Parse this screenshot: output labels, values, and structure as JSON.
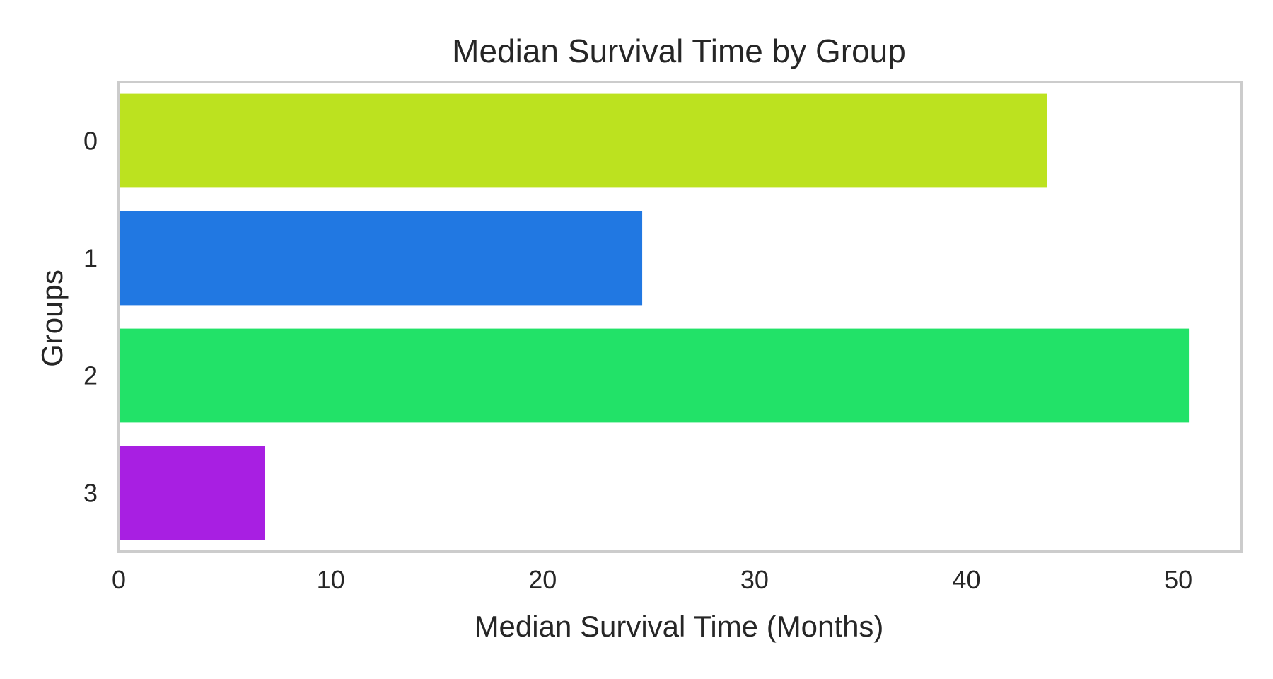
{
  "chart_data": {
    "type": "bar",
    "orientation": "horizontal",
    "title": "Median Survival Time by Group",
    "xlabel": "Median Survival Time (Months)",
    "ylabel": "Groups",
    "categories": [
      "0",
      "1",
      "2",
      "3"
    ],
    "values": [
      43.8,
      24.7,
      50.5,
      6.9
    ],
    "colors": [
      "#bce21f",
      "#2178e2",
      "#22e268",
      "#a81fe2"
    ],
    "xlim": [
      0,
      53
    ],
    "xticks": [
      0,
      10,
      20,
      30,
      40,
      50
    ],
    "grid": false,
    "frame_color": "#cccccc"
  }
}
